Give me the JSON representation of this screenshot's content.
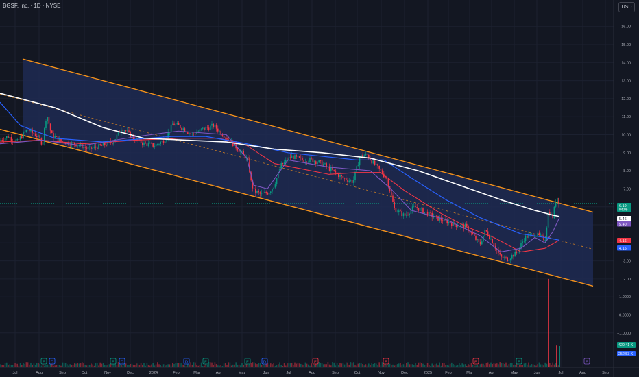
{
  "header": {
    "title": "BGSF, Inc. · 1D · NYSE",
    "currency": "USD"
  },
  "chart_data": {
    "type": "candlestick",
    "symbol": "BGSF, Inc.",
    "interval": "1D",
    "exchange": "NYSE",
    "y_axis": {
      "ticks": [
        16.0,
        15.0,
        14.0,
        13.0,
        12.0,
        11.0,
        10.0,
        9.0,
        8.0,
        7.0,
        6.0,
        5.0,
        4.0,
        3.0,
        2.0,
        1.0,
        0.0,
        -1.0
      ],
      "tick_labels": [
        "16.00",
        "15.00",
        "14.00",
        "13.00",
        "12.00",
        "11.00",
        "10.00",
        "9.00",
        "8.00",
        "7.00",
        "",
        "",
        "",
        "3.00",
        "2.00",
        "1.0000",
        "0.0000",
        "−1.0000"
      ],
      "ylim": [
        -2.3,
        17.2
      ]
    },
    "x_axis": {
      "labels": [
        "Jul",
        "Aug",
        "Sep",
        "Oct",
        "Nov",
        "Dec",
        "2024",
        "Feb",
        "Mar",
        "Apr",
        "May",
        "Jun",
        "Jul",
        "Aug",
        "Sep",
        "Oct",
        "Nov",
        "Dec",
        "2025",
        "Feb",
        "Mar",
        "Apr",
        "May",
        "Jun",
        "Jul",
        "Aug",
        "Sep"
      ],
      "positions": [
        22,
        57,
        91,
        123,
        157,
        190,
        224,
        257,
        287,
        319,
        353,
        388,
        421,
        455,
        489,
        521,
        556,
        590,
        624,
        654,
        685,
        717,
        750,
        783,
        818,
        850,
        883
      ]
    },
    "price_series": [
      [
        0,
        9.7
      ],
      [
        12,
        9.9
      ],
      [
        25,
        9.6
      ],
      [
        40,
        10.3
      ],
      [
        55,
        9.9
      ],
      [
        62,
        9.5
      ],
      [
        68,
        11.2
      ],
      [
        75,
        10.0
      ],
      [
        90,
        9.6
      ],
      [
        110,
        9.5
      ],
      [
        130,
        9.2
      ],
      [
        150,
        9.4
      ],
      [
        165,
        9.6
      ],
      [
        178,
        10.4
      ],
      [
        195,
        9.8
      ],
      [
        210,
        9.5
      ],
      [
        225,
        9.4
      ],
      [
        240,
        9.7
      ],
      [
        252,
        10.6
      ],
      [
        265,
        10.4
      ],
      [
        280,
        10.0
      ],
      [
        295,
        10.3
      ],
      [
        312,
        10.5
      ],
      [
        325,
        10.0
      ],
      [
        340,
        9.5
      ],
      [
        352,
        9.0
      ],
      [
        362,
        8.6
      ],
      [
        366,
        7.4
      ],
      [
        370,
        6.9
      ],
      [
        380,
        6.7
      ],
      [
        392,
        6.8
      ],
      [
        400,
        7.2
      ],
      [
        410,
        8.3
      ],
      [
        425,
        8.8
      ],
      [
        440,
        8.6
      ],
      [
        455,
        8.6
      ],
      [
        470,
        8.4
      ],
      [
        485,
        8.0
      ],
      [
        500,
        7.6
      ],
      [
        515,
        7.4
      ],
      [
        525,
        8.8
      ],
      [
        535,
        8.9
      ],
      [
        545,
        8.4
      ],
      [
        555,
        8.0
      ],
      [
        565,
        7.5
      ],
      [
        575,
        5.9
      ],
      [
        590,
        5.5
      ],
      [
        605,
        6.0
      ],
      [
        620,
        5.7
      ],
      [
        635,
        5.4
      ],
      [
        650,
        5.2
      ],
      [
        665,
        5.0
      ],
      [
        680,
        4.9
      ],
      [
        690,
        4.4
      ],
      [
        700,
        3.9
      ],
      [
        708,
        4.7
      ],
      [
        718,
        4.1
      ],
      [
        730,
        3.2
      ],
      [
        740,
        3.1
      ],
      [
        755,
        3.5
      ],
      [
        765,
        4.3
      ],
      [
        780,
        4.5
      ],
      [
        795,
        4.2
      ],
      [
        800,
        5.8
      ],
      [
        806,
        5.4
      ],
      [
        812,
        6.6
      ],
      [
        816,
        6.19
      ]
    ],
    "ma200_white": [
      [
        0,
        12.3
      ],
      [
        30,
        12.0
      ],
      [
        80,
        11.5
      ],
      [
        150,
        10.4
      ],
      [
        210,
        9.8
      ],
      [
        270,
        9.7
      ],
      [
        330,
        9.6
      ],
      [
        400,
        9.2
      ],
      [
        470,
        9.0
      ],
      [
        540,
        8.7
      ],
      [
        610,
        8.0
      ],
      [
        670,
        7.2
      ],
      [
        730,
        6.4
      ],
      [
        780,
        5.8
      ],
      [
        805,
        5.55
      ],
      [
        816,
        5.46
      ]
    ],
    "ma_blue": [
      [
        0,
        11.8
      ],
      [
        30,
        10.5
      ],
      [
        80,
        9.8
      ],
      [
        150,
        9.6
      ],
      [
        250,
        9.9
      ],
      [
        300,
        9.9
      ],
      [
        360,
        9.5
      ],
      [
        420,
        9.0
      ],
      [
        470,
        8.8
      ],
      [
        520,
        8.6
      ],
      [
        560,
        8.6
      ],
      [
        600,
        7.6
      ],
      [
        650,
        6.4
      ],
      [
        700,
        5.4
      ],
      [
        760,
        4.5
      ],
      [
        795,
        4.3
      ],
      [
        816,
        4.15
      ]
    ],
    "ma_red": [
      [
        0,
        9.6
      ],
      [
        60,
        9.7
      ],
      [
        120,
        9.5
      ],
      [
        200,
        9.7
      ],
      [
        260,
        9.8
      ],
      [
        320,
        9.8
      ],
      [
        360,
        9.4
      ],
      [
        400,
        8.4
      ],
      [
        440,
        8.1
      ],
      [
        480,
        7.8
      ],
      [
        520,
        7.9
      ],
      [
        555,
        7.9
      ],
      [
        590,
        6.9
      ],
      [
        640,
        5.7
      ],
      [
        680,
        4.9
      ],
      [
        720,
        4.3
      ],
      [
        760,
        3.5
      ],
      [
        795,
        3.7
      ],
      [
        816,
        4.16
      ]
    ],
    "ma_purple": [
      [
        0,
        9.5
      ],
      [
        60,
        9.7
      ],
      [
        120,
        9.4
      ],
      [
        200,
        9.9
      ],
      [
        260,
        10.2
      ],
      [
        330,
        10.0
      ],
      [
        360,
        8.7
      ],
      [
        370,
        7.2
      ],
      [
        390,
        7.0
      ],
      [
        405,
        7.8
      ],
      [
        420,
        8.6
      ],
      [
        480,
        8.2
      ],
      [
        540,
        8.0
      ],
      [
        570,
        7.0
      ],
      [
        600,
        5.8
      ],
      [
        650,
        5.3
      ],
      [
        700,
        4.4
      ],
      [
        730,
        3.5
      ],
      [
        760,
        3.7
      ],
      [
        780,
        4.3
      ],
      [
        795,
        4.0
      ],
      [
        806,
        4.6
      ],
      [
        816,
        5.4
      ]
    ],
    "channel": {
      "upper": [
        [
          33,
          14.2
        ],
        [
          865,
          5.7
        ]
      ],
      "lower": [
        [
          0,
          10.3
        ],
        [
          865,
          1.6
        ]
      ],
      "mid": [
        [
          0,
          12.25
        ],
        [
          865,
          3.65
        ]
      ]
    },
    "volume_spikes": [
      [
        800,
        2.0
      ],
      [
        812,
        -1.7
      ]
    ],
    "last_labels": [
      {
        "text": "6.19",
        "sub": "04:05",
        "color": "#089981",
        "value": 6.19
      },
      {
        "text": "5.46",
        "color": "#ffffff",
        "value": 5.46
      },
      {
        "text": "5.40",
        "color": "#7e57c2",
        "value": 5.4
      },
      {
        "text": "4.16",
        "color": "#f23645",
        "value": 4.16
      },
      {
        "text": "4.15",
        "color": "#2962ff",
        "value": 4.15
      }
    ],
    "volume_labels": [
      {
        "text": "420.41 K",
        "color": "#089981"
      },
      {
        "text": "252.53 K",
        "color": "#2962ff"
      }
    ],
    "events": [
      {
        "x": 64,
        "letter": "E",
        "color": "#089981"
      },
      {
        "x": 76,
        "letter": "D",
        "color": "#2962ff"
      },
      {
        "x": 165,
        "letter": "E",
        "color": "#089981"
      },
      {
        "x": 178,
        "letter": "D",
        "color": "#2962ff"
      },
      {
        "x": 272,
        "letter": "D",
        "color": "#2962ff"
      },
      {
        "x": 300,
        "letter": "E",
        "color": "#089981"
      },
      {
        "x": 361,
        "letter": "E",
        "color": "#089981"
      },
      {
        "x": 386,
        "letter": "D",
        "color": "#2962ff"
      },
      {
        "x": 460,
        "letter": "E",
        "color": "#f23645"
      },
      {
        "x": 563,
        "letter": "E",
        "color": "#f23645"
      },
      {
        "x": 694,
        "letter": "E",
        "color": "#f23645"
      },
      {
        "x": 757,
        "letter": "E",
        "color": "#089981"
      },
      {
        "x": 856,
        "letter": "E",
        "color": "#7e57c2"
      }
    ],
    "colors": {
      "background": "#131722",
      "up": "#089981",
      "down": "#f23645",
      "channel_line": "#f7931a",
      "channel_fill": "#1e2a52",
      "ma200": "#ffffff",
      "ma_blue": "#2962ff",
      "ma_red": "#f23645",
      "ma_purple": "#7e57c2"
    }
  }
}
